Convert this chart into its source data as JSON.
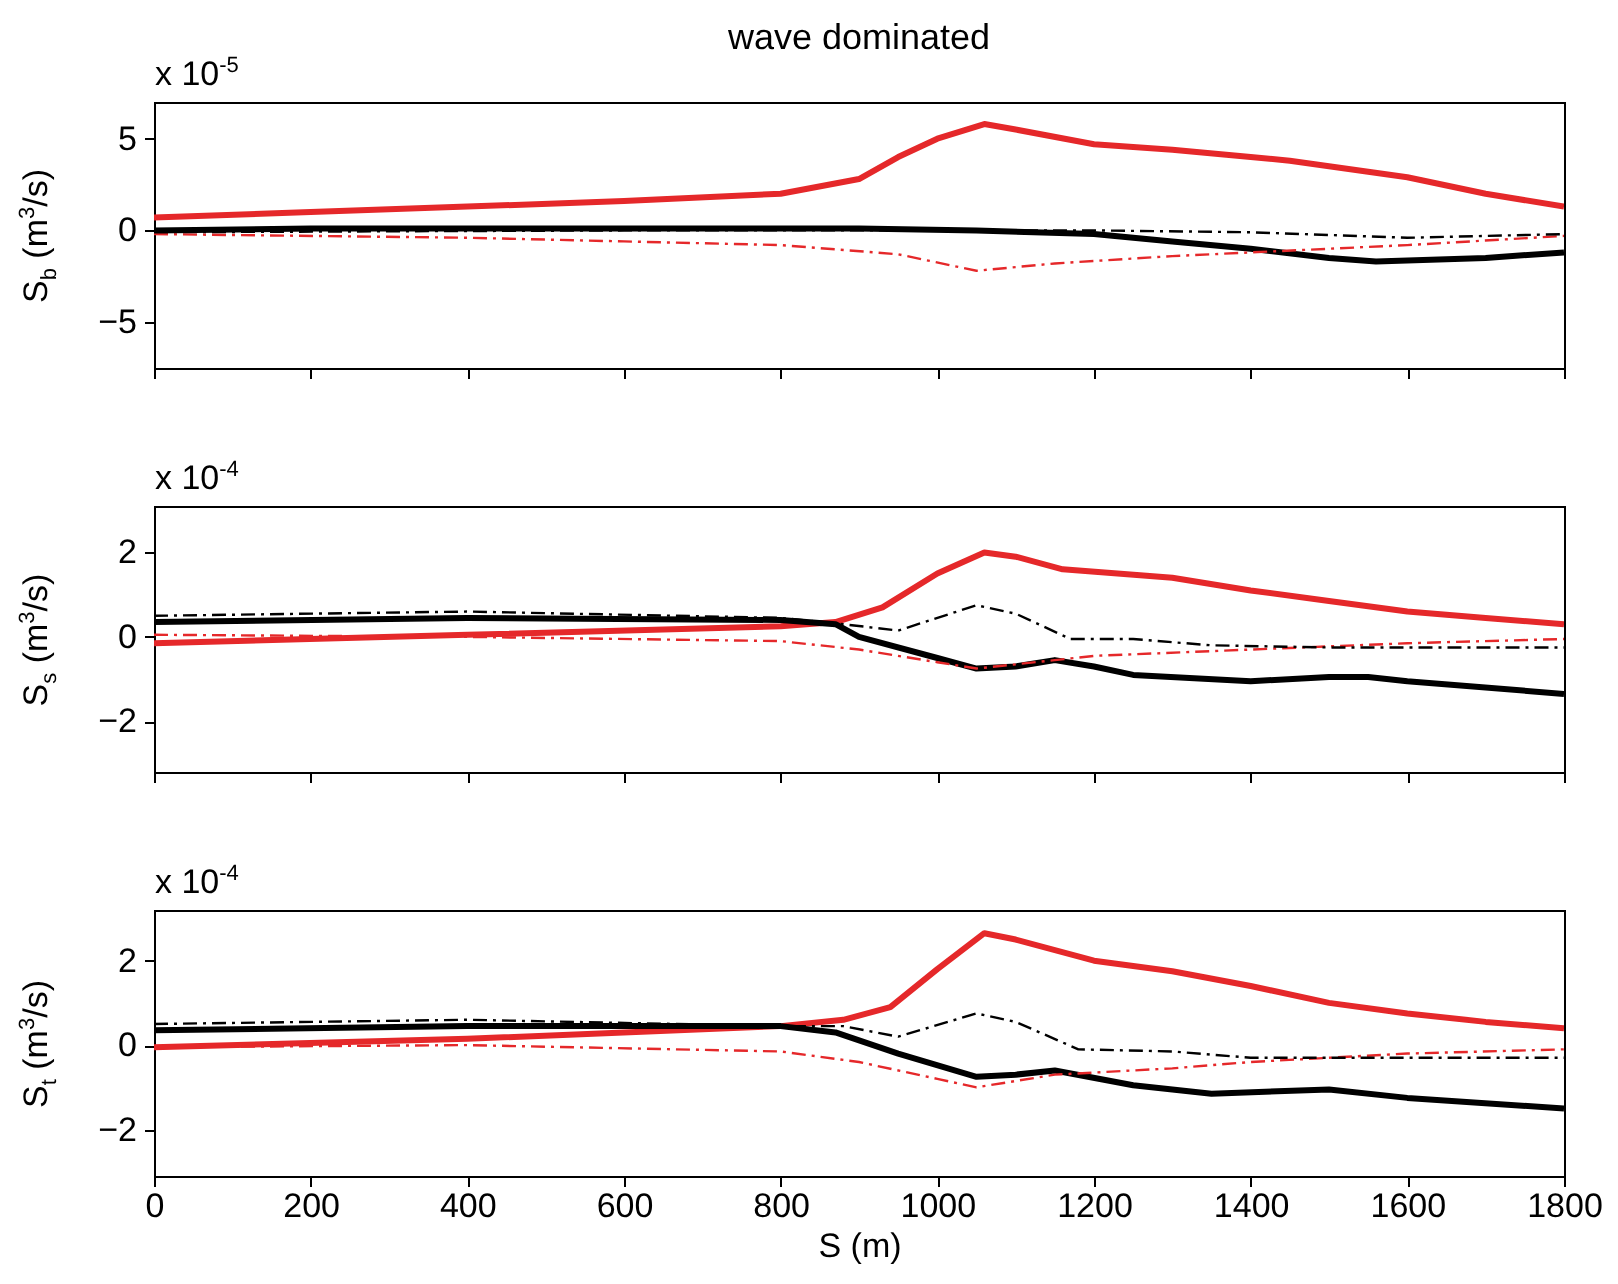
{
  "chart_data": [
    {
      "type": "line",
      "title": "wave dominated",
      "ylabel": "S$_{b}$ (m$^{3}$/s)",
      "annotations": [
        "x 10$^{-5}$"
      ],
      "xlim": [
        0,
        1800
      ],
      "xticks": [
        0,
        200,
        400,
        600,
        800,
        1000,
        1200,
        1400,
        1600,
        1800
      ],
      "ylim": [
        -7.5,
        7
      ],
      "yticks": [
        -5,
        0,
        5
      ],
      "tick_labels": "y",
      "grid": false,
      "series": [
        {
          "color": "#e5282a",
          "line_style": "solid",
          "x": [
            0,
            200,
            400,
            600,
            800,
            900,
            950,
            1000,
            1060,
            1100,
            1200,
            1300,
            1400,
            1450,
            1500,
            1600,
            1700,
            1800
          ],
          "values": [
            0.7,
            1.0,
            1.3,
            1.6,
            2.0,
            2.8,
            4.0,
            5.0,
            5.8,
            5.5,
            4.7,
            4.4,
            4.0,
            3.8,
            3.5,
            2.9,
            2.0,
            1.3
          ]
        },
        {
          "color": "#000000",
          "line_style": "solid",
          "x": [
            0,
            200,
            600,
            900,
            1050,
            1200,
            1300,
            1400,
            1500,
            1560,
            1700,
            1800
          ],
          "values": [
            0,
            0.1,
            0.1,
            0.1,
            0,
            -0.2,
            -0.6,
            -1.0,
            -1.5,
            -1.7,
            -1.5,
            -1.2
          ]
        },
        {
          "color": "#e5282a",
          "line_style": "dashed",
          "x": [
            0,
            400,
            600,
            800,
            950,
            1050,
            1150,
            1300,
            1400,
            1600,
            1800
          ],
          "values": [
            -0.2,
            -0.4,
            -0.6,
            -0.8,
            -1.3,
            -2.2,
            -1.8,
            -1.4,
            -1.2,
            -0.8,
            -0.3
          ]
        },
        {
          "color": "#000000",
          "line_style": "dashed",
          "x": [
            0,
            600,
            1000,
            1200,
            1400,
            1600,
            1800
          ],
          "values": [
            -0.1,
            0,
            0,
            0,
            -0.1,
            -0.4,
            -0.2
          ]
        }
      ]
    },
    {
      "type": "line",
      "ylabel": "S$_{s}$ (m$^{3}$/s)",
      "annotations": [
        "x 10$^{-4}$"
      ],
      "xlim": [
        0,
        1800
      ],
      "xticks": [
        0,
        200,
        400,
        600,
        800,
        1000,
        1200,
        1400,
        1600,
        1800
      ],
      "ylim": [
        -3.2,
        3.1
      ],
      "yticks": [
        -2,
        0,
        2
      ],
      "tick_labels": "y",
      "grid": false,
      "series": [
        {
          "color": "#e5282a",
          "line_style": "solid",
          "x": [
            0,
            400,
            800,
            870,
            930,
            1000,
            1060,
            1100,
            1160,
            1300,
            1400,
            1500,
            1600,
            1700,
            1800
          ],
          "values": [
            -0.15,
            0.05,
            0.25,
            0.35,
            0.7,
            1.5,
            2.0,
            1.9,
            1.6,
            1.4,
            1.1,
            0.85,
            0.6,
            0.45,
            0.3
          ]
        },
        {
          "color": "#000000",
          "line_style": "solid",
          "x": [
            0,
            400,
            800,
            870,
            900,
            1000,
            1050,
            1100,
            1150,
            1200,
            1250,
            1400,
            1500,
            1550,
            1600,
            1800
          ],
          "values": [
            0.35,
            0.45,
            0.4,
            0.3,
            0.0,
            -0.5,
            -0.75,
            -0.7,
            -0.55,
            -0.7,
            -0.9,
            -1.05,
            -0.95,
            -0.95,
            -1.05,
            -1.35
          ]
        },
        {
          "color": "#e5282a",
          "line_style": "dashed",
          "x": [
            0,
            400,
            800,
            900,
            1000,
            1050,
            1150,
            1200,
            1400,
            1600,
            1800
          ],
          "values": [
            0.05,
            0,
            -0.1,
            -0.3,
            -0.6,
            -0.75,
            -0.55,
            -0.45,
            -0.3,
            -0.15,
            -0.05
          ]
        },
        {
          "color": "#000000",
          "line_style": "dashed",
          "x": [
            0,
            400,
            800,
            880,
            950,
            1050,
            1100,
            1170,
            1250,
            1350,
            1500,
            1800
          ],
          "values": [
            0.5,
            0.6,
            0.45,
            0.3,
            0.15,
            0.75,
            0.55,
            -0.05,
            -0.05,
            -0.2,
            -0.25,
            -0.25
          ]
        }
      ]
    },
    {
      "type": "line",
      "xlabel": "S (m)",
      "ylabel": "S$_{t}$ (m$^{3}$/s)",
      "annotations": [
        "x 10$^{-4}$"
      ],
      "xlim": [
        0,
        1800
      ],
      "xticks": [
        0,
        200,
        400,
        600,
        800,
        1000,
        1200,
        1400,
        1600,
        1800
      ],
      "ylim": [
        -3.1,
        3.2
      ],
      "yticks": [
        -2,
        0,
        2
      ],
      "grid": false,
      "series": [
        {
          "color": "#e5282a",
          "line_style": "solid",
          "x": [
            0,
            400,
            800,
            880,
            940,
            1000,
            1060,
            1100,
            1200,
            1300,
            1400,
            1500,
            1600,
            1700,
            1800
          ],
          "values": [
            -0.05,
            0.15,
            0.45,
            0.6,
            0.9,
            1.8,
            2.65,
            2.5,
            2.0,
            1.75,
            1.4,
            1.0,
            0.75,
            0.55,
            0.4
          ]
        },
        {
          "color": "#000000",
          "line_style": "solid",
          "x": [
            0,
            400,
            800,
            870,
            950,
            1050,
            1100,
            1150,
            1250,
            1350,
            1500,
            1600,
            1800
          ],
          "values": [
            0.35,
            0.45,
            0.45,
            0.3,
            -0.2,
            -0.75,
            -0.7,
            -0.6,
            -0.95,
            -1.15,
            -1.05,
            -1.25,
            -1.5
          ]
        },
        {
          "color": "#e5282a",
          "line_style": "dashed",
          "x": [
            0,
            400,
            800,
            900,
            1000,
            1050,
            1150,
            1300,
            1400,
            1600,
            1800
          ],
          "values": [
            -0.05,
            0,
            -0.15,
            -0.4,
            -0.8,
            -1.0,
            -0.7,
            -0.55,
            -0.4,
            -0.2,
            -0.1
          ]
        },
        {
          "color": "#000000",
          "line_style": "dashed",
          "x": [
            0,
            400,
            800,
            880,
            950,
            1050,
            1100,
            1180,
            1300,
            1400,
            1600,
            1800
          ],
          "values": [
            0.5,
            0.6,
            0.45,
            0.45,
            0.2,
            0.75,
            0.55,
            -0.1,
            -0.15,
            -0.3,
            -0.3,
            -0.3
          ]
        }
      ]
    }
  ]
}
